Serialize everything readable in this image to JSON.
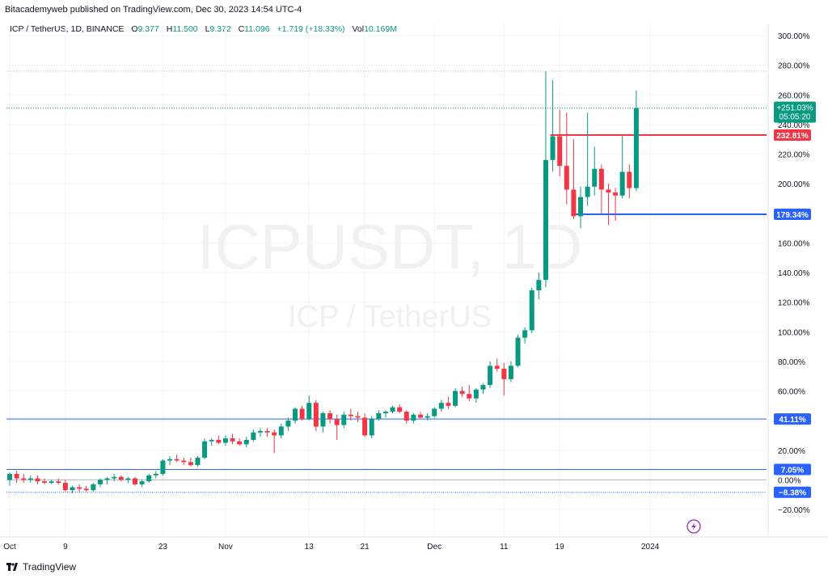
{
  "header": {
    "publisher": "Bitacademyweb published on TradingView.com, Dec 30, 2023 14:54 UTC-4"
  },
  "symbol_bar": {
    "name": "ICP / TetherUS, 1D, BINANCE",
    "open_label": "O",
    "open_value": "9.377",
    "high_label": "H",
    "high_value": "11.500",
    "low_label": "L",
    "low_value": "9.372",
    "close_label": "C",
    "close_value": "11.096",
    "change_value": "+1.719 (+18.33%)",
    "vol_label": "Vol",
    "vol_value": "10.169M"
  },
  "watermark": {
    "line1": "ICPUSDT, 1D",
    "line2": "ICP / TetherUS"
  },
  "footer": {
    "brand": "TradingView"
  },
  "colors": {
    "up": "#089981",
    "down": "#f23645",
    "resistance": "#f23645",
    "support": "#2962ff",
    "level": "#2962ff",
    "grid": "#f0f3fa",
    "axis_text": "#131722"
  },
  "chart_data": {
    "type": "candlestick",
    "y_unit": "%",
    "ylim": [
      -25,
      305
    ],
    "y_ticks": [
      -20,
      0,
      20,
      40,
      60,
      80,
      100,
      120,
      140,
      160,
      180,
      200,
      220,
      240,
      260,
      280,
      300
    ],
    "y_tick_labels": [
      "−20.00%",
      "0.00%",
      "20.00%",
      "40.00%",
      "60.00%",
      "80.00%",
      "100.00%",
      "120.00%",
      "140.00%",
      "160.00%",
      "180.00%",
      "200.00%",
      "220.00%",
      "240.00%",
      "260.00%",
      "280.00%",
      "300.00%"
    ],
    "x_ticks": [
      {
        "index": 0,
        "label": "Oct"
      },
      {
        "index": 8,
        "label": "9"
      },
      {
        "index": 22,
        "label": "23"
      },
      {
        "index": 31,
        "label": "Nov"
      },
      {
        "index": 43,
        "label": "13"
      },
      {
        "index": 51,
        "label": "21"
      },
      {
        "index": 61,
        "label": "Dec"
      },
      {
        "index": 71,
        "label": "11"
      },
      {
        "index": 79,
        "label": "19"
      },
      {
        "index": 92,
        "label": "2024"
      }
    ],
    "last_visible_index": 89,
    "grid": true,
    "candles": [
      {
        "o": 0,
        "h": 5,
        "l": -4,
        "c": 4
      },
      {
        "o": 4,
        "h": 6,
        "l": -2,
        "c": 1
      },
      {
        "o": 1,
        "h": 4,
        "l": -2,
        "c": 0
      },
      {
        "o": 0,
        "h": 3,
        "l": -2,
        "c": 1
      },
      {
        "o": 1,
        "h": 3,
        "l": -3,
        "c": -1
      },
      {
        "o": -1,
        "h": 1,
        "l": -3,
        "c": -2
      },
      {
        "o": -2,
        "h": 0,
        "l": -3,
        "c": -1
      },
      {
        "o": -1,
        "h": 1,
        "l": -3,
        "c": -2
      },
      {
        "o": -2,
        "h": 0,
        "l": -8,
        "c": -7
      },
      {
        "o": -7,
        "h": -4,
        "l": -9,
        "c": -5
      },
      {
        "o": -5,
        "h": -3,
        "l": -8,
        "c": -6
      },
      {
        "o": -6,
        "h": -4,
        "l": -8,
        "c": -7
      },
      {
        "o": -7,
        "h": -2,
        "l": -8,
        "c": -3
      },
      {
        "o": -3,
        "h": 1,
        "l": -5,
        "c": 0
      },
      {
        "o": 0,
        "h": 2,
        "l": -3,
        "c": 1
      },
      {
        "o": 1,
        "h": 4,
        "l": -1,
        "c": 2
      },
      {
        "o": 2,
        "h": 3,
        "l": -1,
        "c": 0
      },
      {
        "o": 0,
        "h": 2,
        "l": -2,
        "c": 1
      },
      {
        "o": 1,
        "h": 2,
        "l": -4,
        "c": -3
      },
      {
        "o": -3,
        "h": 0,
        "l": -5,
        "c": -1
      },
      {
        "o": -1,
        "h": 4,
        "l": -2,
        "c": 3
      },
      {
        "o": 3,
        "h": 6,
        "l": 1,
        "c": 4
      },
      {
        "o": 4,
        "h": 14,
        "l": 3,
        "c": 13
      },
      {
        "o": 13,
        "h": 16,
        "l": 10,
        "c": 14
      },
      {
        "o": 14,
        "h": 17,
        "l": 12,
        "c": 13
      },
      {
        "o": 13,
        "h": 15,
        "l": 10,
        "c": 12
      },
      {
        "o": 12,
        "h": 15,
        "l": 9,
        "c": 10
      },
      {
        "o": 10,
        "h": 16,
        "l": 9,
        "c": 15
      },
      {
        "o": 15,
        "h": 28,
        "l": 14,
        "c": 26
      },
      {
        "o": 26,
        "h": 28,
        "l": 23,
        "c": 27
      },
      {
        "o": 27,
        "h": 30,
        "l": 24,
        "c": 25
      },
      {
        "o": 25,
        "h": 30,
        "l": 23,
        "c": 28
      },
      {
        "o": 28,
        "h": 31,
        "l": 24,
        "c": 26
      },
      {
        "o": 26,
        "h": 28,
        "l": 23,
        "c": 24
      },
      {
        "o": 24,
        "h": 29,
        "l": 22,
        "c": 27
      },
      {
        "o": 27,
        "h": 34,
        "l": 26,
        "c": 32
      },
      {
        "o": 32,
        "h": 35,
        "l": 29,
        "c": 33
      },
      {
        "o": 33,
        "h": 35,
        "l": 29,
        "c": 32
      },
      {
        "o": 32,
        "h": 34,
        "l": 18,
        "c": 30
      },
      {
        "o": 30,
        "h": 38,
        "l": 28,
        "c": 36
      },
      {
        "o": 36,
        "h": 42,
        "l": 33,
        "c": 40
      },
      {
        "o": 40,
        "h": 49,
        "l": 38,
        "c": 48
      },
      {
        "o": 48,
        "h": 50,
        "l": 40,
        "c": 41
      },
      {
        "o": 41,
        "h": 57,
        "l": 40,
        "c": 52
      },
      {
        "o": 52,
        "h": 54,
        "l": 33,
        "c": 36
      },
      {
        "o": 36,
        "h": 46,
        "l": 32,
        "c": 45
      },
      {
        "o": 45,
        "h": 47,
        "l": 38,
        "c": 41
      },
      {
        "o": 41,
        "h": 44,
        "l": 27,
        "c": 37
      },
      {
        "o": 37,
        "h": 46,
        "l": 35,
        "c": 44
      },
      {
        "o": 44,
        "h": 48,
        "l": 40,
        "c": 43
      },
      {
        "o": 43,
        "h": 46,
        "l": 39,
        "c": 42
      },
      {
        "o": 42,
        "h": 45,
        "l": 29,
        "c": 30
      },
      {
        "o": 30,
        "h": 43,
        "l": 28,
        "c": 41
      },
      {
        "o": 41,
        "h": 47,
        "l": 40,
        "c": 45
      },
      {
        "o": 45,
        "h": 47,
        "l": 42,
        "c": 46
      },
      {
        "o": 46,
        "h": 50,
        "l": 45,
        "c": 49
      },
      {
        "o": 49,
        "h": 51,
        "l": 45,
        "c": 46
      },
      {
        "o": 46,
        "h": 47,
        "l": 38,
        "c": 40
      },
      {
        "o": 40,
        "h": 45,
        "l": 38,
        "c": 44
      },
      {
        "o": 44,
        "h": 46,
        "l": 41,
        "c": 42
      },
      {
        "o": 42,
        "h": 45,
        "l": 40,
        "c": 43
      },
      {
        "o": 43,
        "h": 49,
        "l": 42,
        "c": 48
      },
      {
        "o": 48,
        "h": 54,
        "l": 46,
        "c": 52
      },
      {
        "o": 52,
        "h": 56,
        "l": 48,
        "c": 50
      },
      {
        "o": 50,
        "h": 62,
        "l": 49,
        "c": 60
      },
      {
        "o": 60,
        "h": 63,
        "l": 56,
        "c": 58
      },
      {
        "o": 58,
        "h": 64,
        "l": 53,
        "c": 55
      },
      {
        "o": 55,
        "h": 62,
        "l": 52,
        "c": 61
      },
      {
        "o": 61,
        "h": 65,
        "l": 58,
        "c": 64
      },
      {
        "o": 64,
        "h": 80,
        "l": 62,
        "c": 77
      },
      {
        "o": 77,
        "h": 82,
        "l": 73,
        "c": 75
      },
      {
        "o": 75,
        "h": 79,
        "l": 57,
        "c": 68
      },
      {
        "o": 68,
        "h": 80,
        "l": 66,
        "c": 77
      },
      {
        "o": 77,
        "h": 98,
        "l": 76,
        "c": 96
      },
      {
        "o": 96,
        "h": 103,
        "l": 92,
        "c": 101
      },
      {
        "o": 101,
        "h": 130,
        "l": 99,
        "c": 128
      },
      {
        "o": 128,
        "h": 140,
        "l": 122,
        "c": 135
      },
      {
        "o": 135,
        "h": 276,
        "l": 130,
        "c": 216
      },
      {
        "o": 216,
        "h": 270,
        "l": 208,
        "c": 232
      },
      {
        "o": 232,
        "h": 250,
        "l": 205,
        "c": 212
      },
      {
        "o": 212,
        "h": 248,
        "l": 186,
        "c": 196
      },
      {
        "o": 196,
        "h": 230,
        "l": 176,
        "c": 178
      },
      {
        "o": 178,
        "h": 198,
        "l": 170,
        "c": 191
      },
      {
        "o": 191,
        "h": 248,
        "l": 185,
        "c": 198
      },
      {
        "o": 198,
        "h": 225,
        "l": 192,
        "c": 210
      },
      {
        "o": 210,
        "h": 213,
        "l": 180,
        "c": 196
      },
      {
        "o": 196,
        "h": 200,
        "l": 172,
        "c": 194
      },
      {
        "o": 194,
        "h": 197,
        "l": 175,
        "c": 192
      },
      {
        "o": 192,
        "h": 232,
        "l": 190,
        "c": 208
      },
      {
        "o": 208,
        "h": 213,
        "l": 190,
        "c": 197
      },
      {
        "o": 197,
        "h": 263,
        "l": 195,
        "c": 251
      }
    ],
    "horizontal_levels": [
      {
        "value": 232.81,
        "label": "232.81%",
        "color": "#f23645",
        "style": "solid",
        "start_index": 78,
        "width": 2
      },
      {
        "value": 179.34,
        "label": "179.34%",
        "color": "#2962ff",
        "style": "solid",
        "start_index": 81,
        "width": 2
      },
      {
        "value": 41.11,
        "label": "41.11%",
        "color": "#2962ff",
        "style": "solid",
        "start_index": 0,
        "width": 1
      },
      {
        "value": 7.05,
        "label": "7.05%",
        "color": "#2962ff",
        "style": "solid",
        "start_index": 0,
        "width": 1
      },
      {
        "value": -8.38,
        "label": "−8.38%",
        "color": "#2962ff",
        "style": "dotted",
        "start_index": 0,
        "width": 1
      }
    ],
    "reference_lines": [
      {
        "value": 276,
        "color": "#b2b5be",
        "style": "dotted"
      },
      {
        "value": 251,
        "color": "#089981",
        "style": "dotted"
      },
      {
        "value": 0,
        "color": "#b2b5be",
        "style": "solid"
      }
    ],
    "last_price_badge": {
      "value": 251.03,
      "label": "+251.03%",
      "countdown": "05:05:20",
      "color": "#089981"
    }
  }
}
